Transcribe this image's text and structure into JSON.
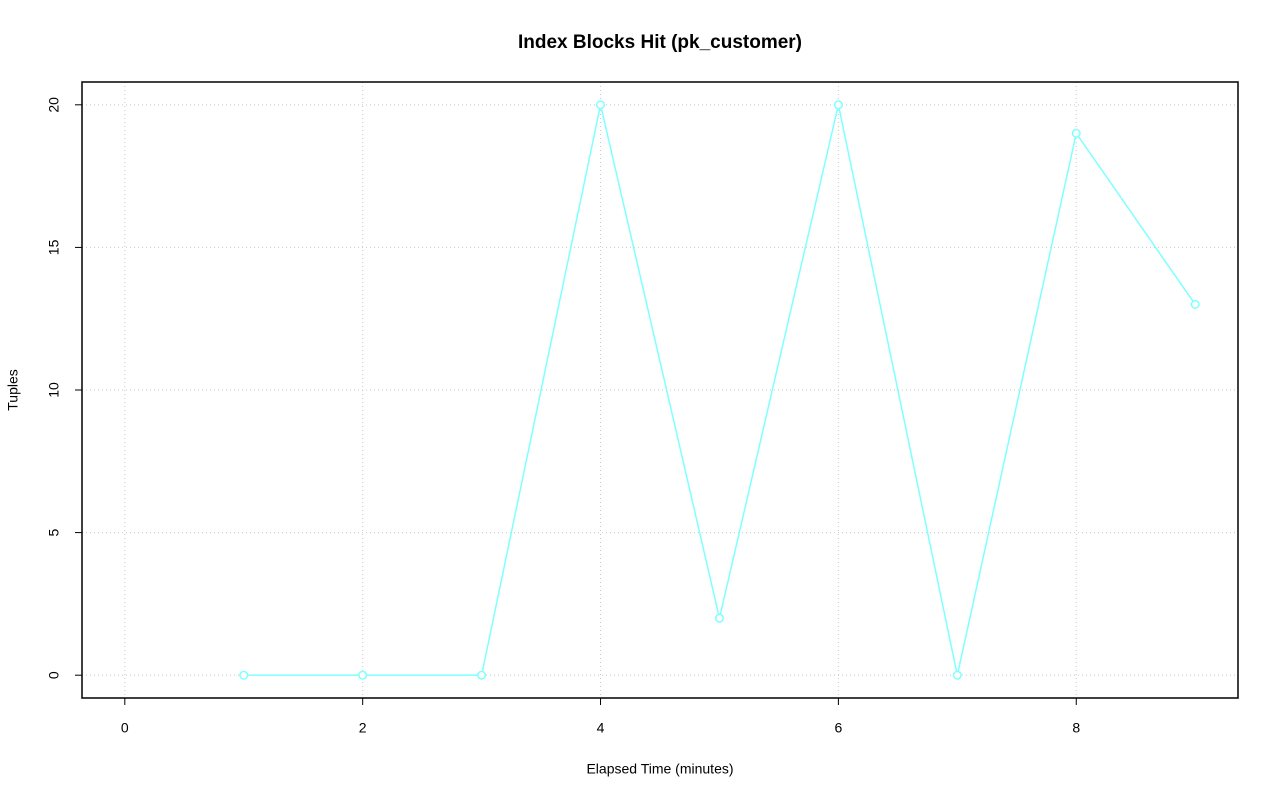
{
  "chart_data": {
    "type": "line",
    "title": "Index Blocks Hit (pk_customer)",
    "x_label": "Elapsed Time (minutes)",
    "y_label": "Tuples",
    "x": [
      1,
      2,
      3,
      4,
      5,
      6,
      7,
      8,
      9
    ],
    "series": [
      {
        "name": "pk_customer",
        "color": "#80ffff",
        "values": [
          0,
          0,
          0,
          20,
          2,
          20,
          0,
          19,
          13
        ]
      }
    ],
    "xlim": [
      -0.36,
      9.36
    ],
    "xticks": [
      0,
      2,
      4,
      6,
      8
    ],
    "ylim": [
      -0.8,
      20.8
    ],
    "yticks": [
      0,
      5,
      10,
      15,
      20
    ],
    "grid": true
  }
}
